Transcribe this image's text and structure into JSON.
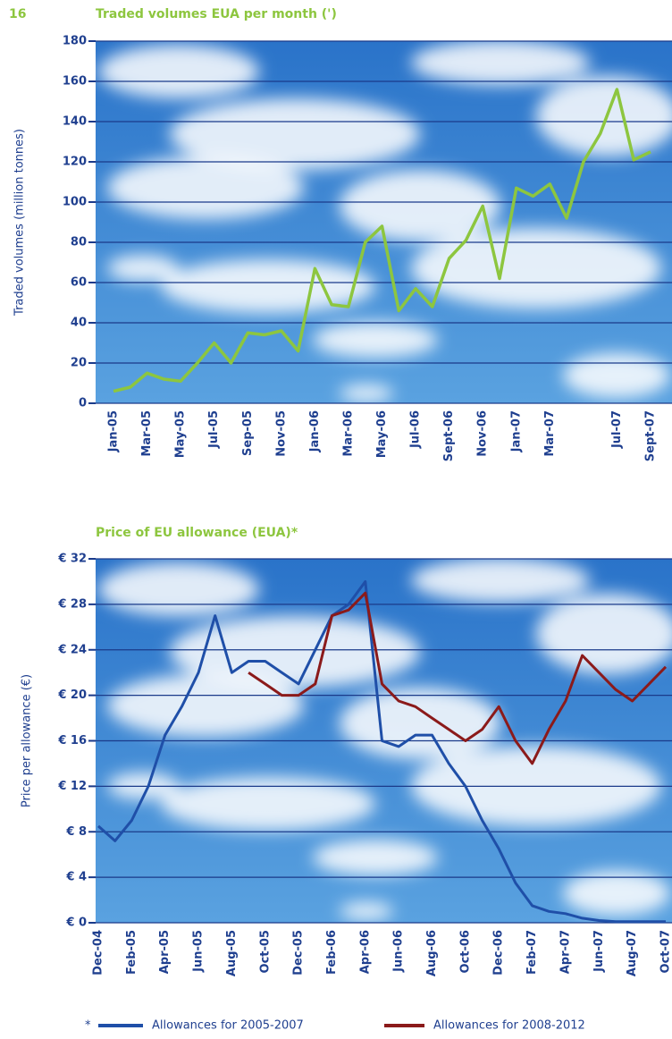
{
  "page_number": "16",
  "chart_data": [
    {
      "type": "line",
      "title": "Traded volumes EUA per month (')",
      "y_label": "Traded volumes (million tonnes)",
      "categories": [
        "Jan-05",
        null,
        "Mar-05",
        null,
        "May-05",
        null,
        "Jul-05",
        null,
        "Sep-05",
        null,
        "Nov-05",
        null,
        "Jan-06",
        null,
        "Mar-06",
        null,
        "May-06",
        null,
        "Jul-06",
        null,
        "Sept-06",
        null,
        "Nov-06",
        null,
        "Jan-07",
        null,
        "Mar-07",
        null,
        null,
        null,
        "Jul-07",
        null,
        "Sept-07"
      ],
      "values": [
        6,
        8,
        15,
        12,
        11,
        20,
        30,
        20,
        35,
        34,
        36,
        26,
        67,
        49,
        48,
        80,
        88,
        46,
        57,
        48,
        72,
        81,
        98,
        62,
        107,
        103,
        109,
        92,
        120,
        134,
        156,
        121,
        125
      ],
      "color": "#8dc63f",
      "ylim": [
        0,
        180
      ],
      "yticks": [
        0,
        20,
        40,
        60,
        80,
        100,
        120,
        140,
        160,
        180
      ],
      "grid": true
    },
    {
      "type": "line",
      "title": "Price of EU allowance (EUA)*",
      "y_label": "Price per allowance (€)",
      "categories": [
        "Dec-04",
        null,
        "Feb-05",
        null,
        "Apr-05",
        null,
        "Jun-05",
        null,
        "Aug-05",
        null,
        "Oct-05",
        null,
        "Dec-05",
        null,
        "Feb-06",
        null,
        "Apr-06",
        null,
        "Jun-06",
        null,
        "Aug-06",
        null,
        "Oct-06",
        null,
        "Dec-06",
        null,
        "Feb-07",
        null,
        "Apr-07",
        null,
        "Jun-07",
        null,
        "Aug-07",
        null,
        "Oct-07"
      ],
      "series": [
        {
          "name": "Allowances for 2005-2007",
          "color": "#1f4fa8",
          "values": [
            8.5,
            7.2,
            9,
            12,
            16.5,
            19,
            22,
            27,
            22,
            23,
            23,
            22,
            21,
            24,
            27,
            28,
            30,
            16,
            15.5,
            16.5,
            16.5,
            14,
            12,
            9,
            6.5,
            3.5,
            1.5,
            1,
            0.8,
            0.4,
            0.2,
            0.1,
            0.1,
            0.1,
            0.1
          ]
        },
        {
          "name": "Allowances for 2008-2012",
          "color": "#8b1a1a",
          "values": [
            null,
            null,
            null,
            null,
            null,
            null,
            null,
            null,
            null,
            22,
            21,
            20,
            20,
            21,
            27,
            27.5,
            29,
            21,
            19.5,
            19,
            18,
            17,
            16,
            17,
            19,
            16,
            14,
            17,
            19.5,
            23.5,
            22,
            20.5,
            19.5,
            21,
            22.5
          ]
        }
      ],
      "legend_note": "*",
      "ylim": [
        0,
        32
      ],
      "yticks": [
        {
          "value": 0,
          "label": "€ 0"
        },
        {
          "value": 4,
          "label": "€ 4"
        },
        {
          "value": 8,
          "label": "€ 8"
        },
        {
          "value": 12,
          "label": "€ 12"
        },
        {
          "value": 16,
          "label": "€ 16"
        },
        {
          "value": 20,
          "label": "€ 20"
        },
        {
          "value": 24,
          "label": "€ 24"
        },
        {
          "value": 28,
          "label": "€ 28"
        },
        {
          "value": 32,
          "label": "€ 32"
        }
      ],
      "grid": true
    }
  ]
}
